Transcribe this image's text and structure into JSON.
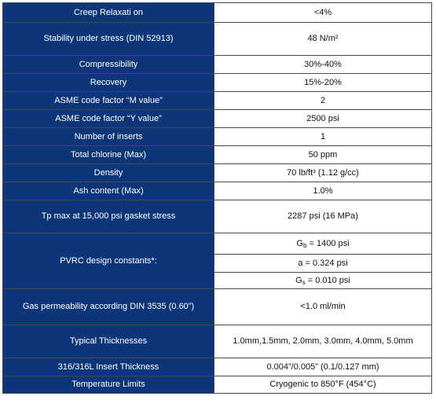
{
  "table": {
    "rows": [
      {
        "label": "Creep Relaxati on",
        "value": "<4%"
      },
      {
        "label": "Stability under stress (DIN 52913)",
        "value": "48 N/m²"
      },
      {
        "label": "Compressibility",
        "value": "30%-40%"
      },
      {
        "label": "Recovery",
        "value": "15%-20%"
      },
      {
        "label": "ASME code factor “M value”",
        "value": "2"
      },
      {
        "label": "ASME code factor “Y value”",
        "value": "2500 psi"
      },
      {
        "label": "Number of inserts",
        "value": "1"
      },
      {
        "label": "Total chlorine (Max)",
        "value": "50 ppm"
      },
      {
        "label": "Density",
        "value": "70 lb/ft³ (1.12 g/cc)"
      },
      {
        "label": "Ash content (Max)",
        "value": "1.0%"
      },
      {
        "label": "Tp max at 15,000 psi gasket stress",
        "value": "2287 psi (16 MPa)"
      }
    ],
    "pvrc": {
      "label": "PVRC design constants*:",
      "gb": {
        "prefix": "G",
        "sub": "b",
        "suffix": " = 1400 psi"
      },
      "a": "a = 0.324 psi",
      "gs": {
        "prefix": "G",
        "sub": "s",
        "suffix": " = 0.010 psi"
      }
    },
    "rows_after": [
      {
        "label": "Gas permeability according DIN 3535 (0.60”)",
        "value": "<1.0 ml/min"
      },
      {
        "label": "Typical Thicknesses",
        "value": "1.0mm,1.5mm, 2.0mm, 3.0mm, 4.0mm, 5.0mm"
      },
      {
        "label": "316/316L Insert Thickness",
        "value": "0.004”/0.005” (0.1/0.127 mm)"
      },
      {
        "label": "Temperature Limits",
        "value": "Cryogenic to 850°F (454°C)"
      }
    ]
  }
}
